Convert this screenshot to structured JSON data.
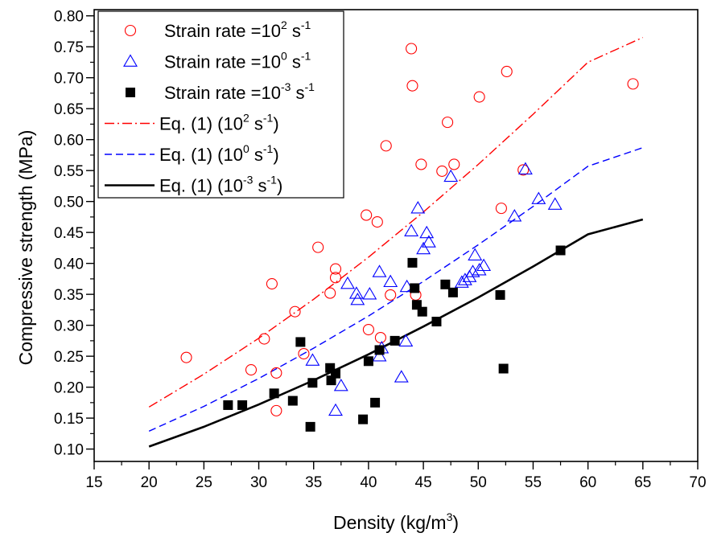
{
  "chart_data": {
    "type": "scatter",
    "xlabel": "Density (kg/m",
    "xlabel_sup": "3",
    "xlabel_end": ")",
    "ylabel": "Compressive strength (MPa)",
    "xlim": [
      15,
      70
    ],
    "ylim": [
      0.08,
      0.81
    ],
    "x_ticks": [
      15,
      20,
      25,
      30,
      35,
      40,
      45,
      50,
      55,
      60,
      65,
      70
    ],
    "y_ticks": [
      0.1,
      0.15,
      0.2,
      0.25,
      0.3,
      0.35,
      0.4,
      0.45,
      0.5,
      0.55,
      0.6,
      0.65,
      0.7,
      0.75,
      0.8
    ],
    "x_tick_labels": [
      "15",
      "20",
      "25",
      "30",
      "35",
      "40",
      "45",
      "50",
      "55",
      "60",
      "65",
      "70"
    ],
    "y_tick_labels": [
      "0.10",
      "0.15",
      "0.20",
      "0.25",
      "0.30",
      "0.35",
      "0.40",
      "0.45",
      "0.50",
      "0.55",
      "0.60",
      "0.65",
      "0.70",
      "0.75",
      "0.80"
    ],
    "grid": false,
    "legend_position": "top-left",
    "series": [
      {
        "legend_base": "Strain rate =10",
        "legend_sup": "2",
        "legend_unit": " s",
        "legend_unit_sup": "-1",
        "marker": "circle-open",
        "color": "#ff0000",
        "points": [
          [
            23.4,
            0.248
          ],
          [
            29.3,
            0.228
          ],
          [
            30.5,
            0.278
          ],
          [
            31.2,
            0.367
          ],
          [
            31.6,
            0.223
          ],
          [
            31.6,
            0.162
          ],
          [
            33.3,
            0.322
          ],
          [
            34.1,
            0.254
          ],
          [
            35.4,
            0.426
          ],
          [
            36.5,
            0.352
          ],
          [
            37.0,
            0.377
          ],
          [
            37.0,
            0.391
          ],
          [
            39.8,
            0.478
          ],
          [
            40.0,
            0.293
          ],
          [
            40.8,
            0.467
          ],
          [
            41.1,
            0.28
          ],
          [
            41.6,
            0.59
          ],
          [
            42.0,
            0.349
          ],
          [
            43.9,
            0.747
          ],
          [
            44.0,
            0.687
          ],
          [
            44.3,
            0.349
          ],
          [
            44.8,
            0.56
          ],
          [
            46.7,
            0.549
          ],
          [
            47.2,
            0.628
          ],
          [
            47.8,
            0.56
          ],
          [
            50.1,
            0.669
          ],
          [
            52.1,
            0.489
          ],
          [
            52.6,
            0.71
          ],
          [
            54.1,
            0.551
          ],
          [
            64.1,
            0.69
          ]
        ]
      },
      {
        "legend_base": "Strain rate =10",
        "legend_sup": "0",
        "legend_unit": " s",
        "legend_unit_sup": "-1",
        "marker": "triangle-open",
        "color": "#0000ff",
        "points": [
          [
            34.9,
            0.243
          ],
          [
            37.0,
            0.162
          ],
          [
            37.5,
            0.202
          ],
          [
            38.1,
            0.367
          ],
          [
            38.9,
            0.351
          ],
          [
            39.0,
            0.341
          ],
          [
            40.1,
            0.35
          ],
          [
            41.0,
            0.386
          ],
          [
            41.0,
            0.25
          ],
          [
            41.2,
            0.263
          ],
          [
            42.0,
            0.37
          ],
          [
            43.0,
            0.216
          ],
          [
            43.4,
            0.274
          ],
          [
            43.5,
            0.362
          ],
          [
            43.9,
            0.452
          ],
          [
            44.5,
            0.489
          ],
          [
            45.0,
            0.423
          ],
          [
            45.3,
            0.449
          ],
          [
            45.5,
            0.434
          ],
          [
            47.5,
            0.54
          ],
          [
            48.5,
            0.369
          ],
          [
            48.8,
            0.373
          ],
          [
            49.2,
            0.378
          ],
          [
            49.5,
            0.386
          ],
          [
            49.7,
            0.413
          ],
          [
            50.1,
            0.389
          ],
          [
            50.5,
            0.396
          ],
          [
            53.3,
            0.476
          ],
          [
            54.3,
            0.552
          ],
          [
            55.5,
            0.504
          ],
          [
            57.0,
            0.495
          ]
        ]
      },
      {
        "legend_base": "Strain rate =10",
        "legend_sup": "-3",
        "legend_unit": " s",
        "legend_unit_sup": "-1",
        "marker": "square-filled",
        "color": "#000000",
        "points": [
          [
            27.2,
            0.171
          ],
          [
            28.5,
            0.171
          ],
          [
            31.4,
            0.19
          ],
          [
            33.1,
            0.178
          ],
          [
            33.8,
            0.273
          ],
          [
            34.7,
            0.136
          ],
          [
            34.9,
            0.207
          ],
          [
            36.5,
            0.231
          ],
          [
            36.6,
            0.211
          ],
          [
            37.0,
            0.222
          ],
          [
            39.5,
            0.148
          ],
          [
            40.0,
            0.242
          ],
          [
            40.6,
            0.175
          ],
          [
            41.0,
            0.26
          ],
          [
            42.4,
            0.275
          ],
          [
            44.0,
            0.401
          ],
          [
            44.2,
            0.36
          ],
          [
            44.4,
            0.333
          ],
          [
            44.9,
            0.322
          ],
          [
            46.2,
            0.306
          ],
          [
            47.0,
            0.366
          ],
          [
            47.7,
            0.353
          ],
          [
            52.0,
            0.349
          ],
          [
            52.3,
            0.23
          ],
          [
            57.5,
            0.421
          ]
        ]
      }
    ],
    "fits": [
      {
        "legend_base": "Eq. (1) (10",
        "legend_sup": "2",
        "legend_unit": " s",
        "legend_unit_sup": "-1",
        "legend_end": ")",
        "color": "#ff0000",
        "dash": "dash-dot",
        "x": [
          20,
          25,
          30,
          35,
          40,
          45,
          50,
          55,
          60,
          65
        ],
        "y": [
          0.168,
          0.221,
          0.279,
          0.342,
          0.41,
          0.483,
          0.56,
          0.641,
          0.725,
          0.765
        ]
      },
      {
        "legend_base": "Eq. (1) (10",
        "legend_sup": "0",
        "legend_unit": " s",
        "legend_unit_sup": "-1",
        "legend_end": ")",
        "color": "#0000ff",
        "dash": "dash",
        "x": [
          20,
          25,
          30,
          35,
          40,
          45,
          50,
          55,
          60,
          65
        ],
        "y": [
          0.129,
          0.169,
          0.214,
          0.263,
          0.315,
          0.371,
          0.43,
          0.492,
          0.557,
          0.587
        ]
      },
      {
        "legend_base": "Eq. (1) (10",
        "legend_sup": "-3",
        "legend_unit": " s",
        "legend_unit_sup": "-1",
        "legend_end": ")",
        "color": "#000000",
        "dash": "solid",
        "x": [
          20,
          25,
          30,
          35,
          40,
          45,
          50,
          55,
          60,
          65
        ],
        "y": [
          0.104,
          0.136,
          0.172,
          0.211,
          0.253,
          0.298,
          0.345,
          0.395,
          0.447,
          0.471
        ]
      }
    ]
  }
}
